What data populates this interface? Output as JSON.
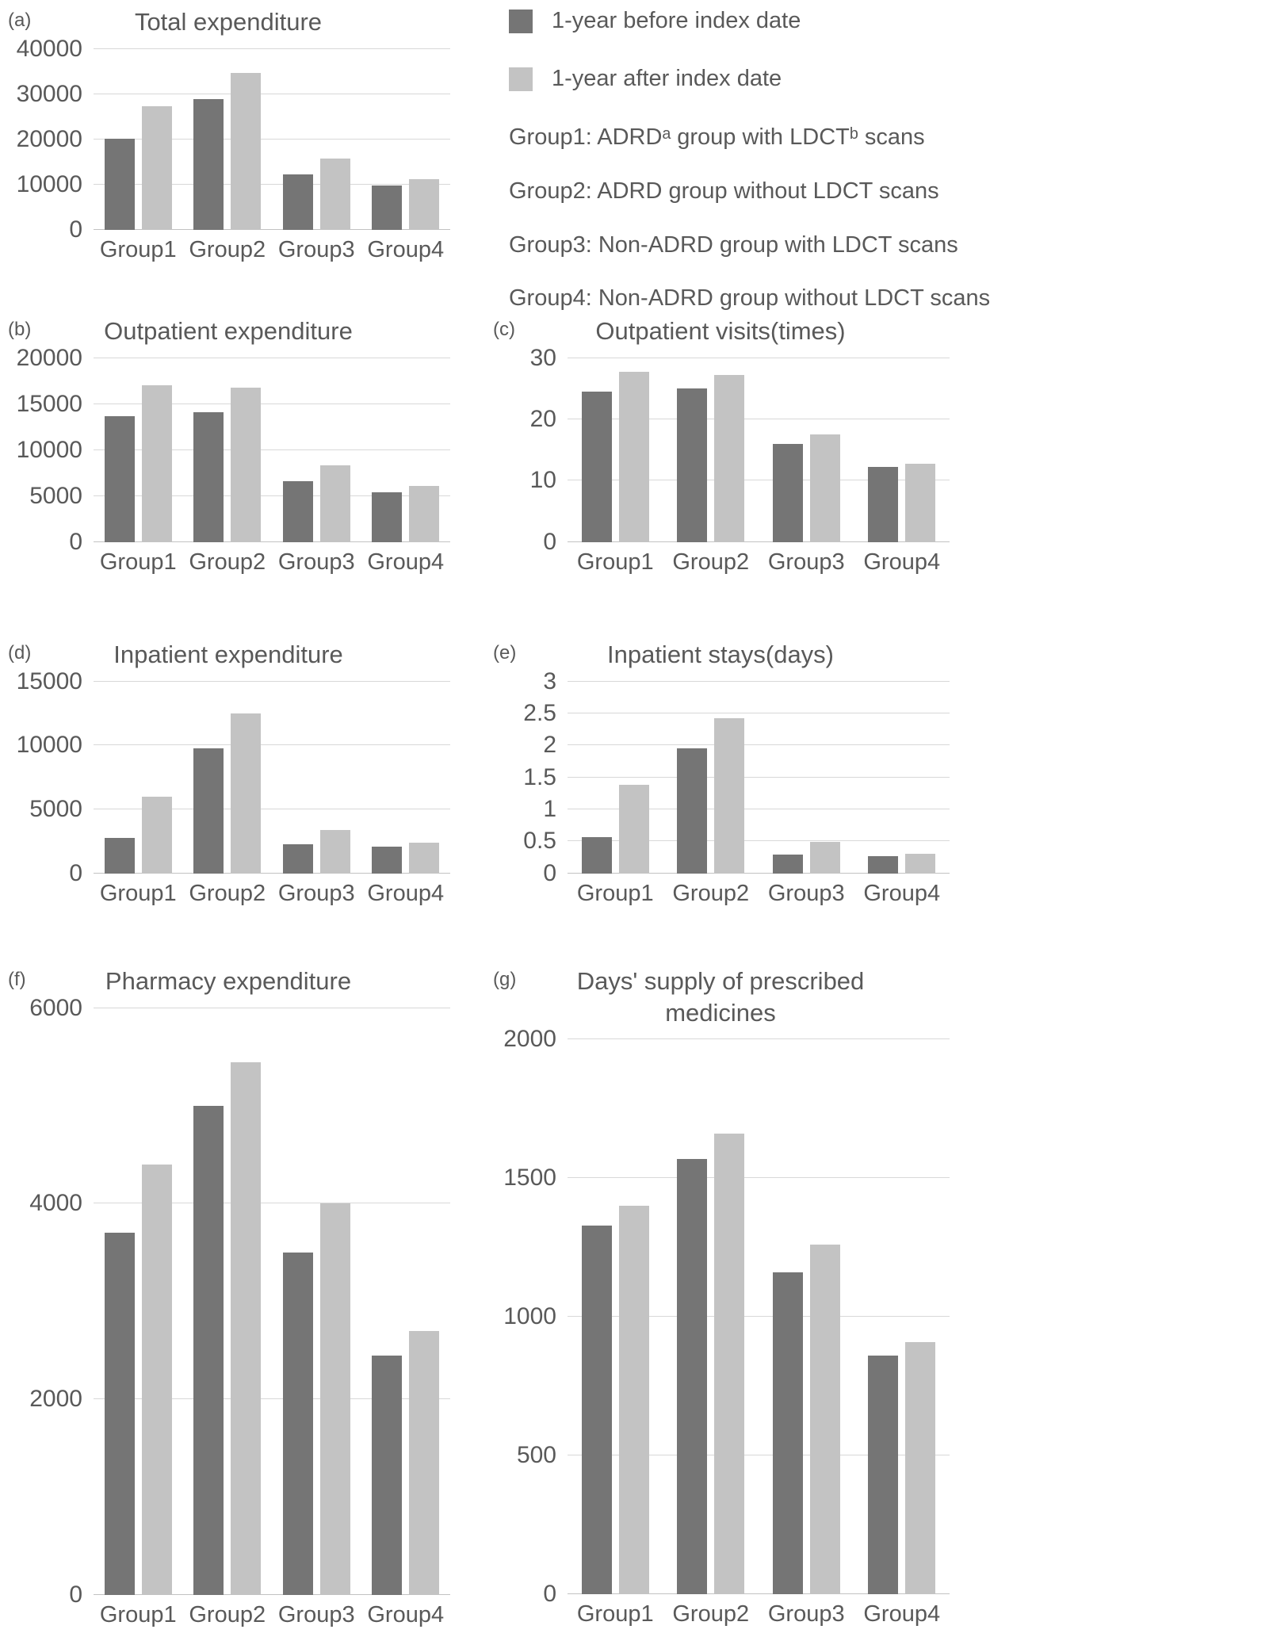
{
  "figure": {
    "text_color": "#595959",
    "colors": {
      "before": "#757575",
      "after": "#c3c3c3",
      "gridline": "#d8d8d8"
    }
  },
  "legend": {
    "items": [
      {
        "key": "before",
        "label": "1-year before index date"
      },
      {
        "key": "after",
        "label": "1-year after index date"
      }
    ],
    "notes": [
      "Group1: ADRDᵃ group with LDCTᵇ scans",
      "Group2: ADRD group without LDCT scans",
      "Group3: Non-ADRD group with LDCT scans",
      "Group4: Non-ADRD group without LDCT scans"
    ]
  },
  "chart_data": [
    {
      "tag": "(a)",
      "type": "bar",
      "title": "Total expenditure",
      "categories": [
        "Group1",
        "Group2",
        "Group3",
        "Group4"
      ],
      "series": [
        {
          "name": "1-year before index date",
          "values": [
            20100,
            28900,
            12200,
            9800
          ]
        },
        {
          "name": "1-year after index date",
          "values": [
            27300,
            34700,
            15700,
            11100
          ]
        }
      ],
      "ylim": [
        0,
        40000
      ],
      "yticks": [
        0,
        10000,
        20000,
        30000,
        40000
      ],
      "grid": true,
      "legend_position": "top-right-of-figure"
    },
    {
      "tag": "(b)",
      "type": "bar",
      "title": "Outpatient expenditure",
      "categories": [
        "Group1",
        "Group2",
        "Group3",
        "Group4"
      ],
      "series": [
        {
          "name": "1-year before index date",
          "values": [
            13700,
            14100,
            6600,
            5400
          ]
        },
        {
          "name": "1-year after index date",
          "values": [
            17000,
            16800,
            8300,
            6100
          ]
        }
      ],
      "ylim": [
        0,
        20000
      ],
      "yticks": [
        0,
        5000,
        10000,
        15000,
        20000
      ],
      "grid": true
    },
    {
      "tag": "(c)",
      "type": "bar",
      "title": "Outpatient visits(times)",
      "categories": [
        "Group1",
        "Group2",
        "Group3",
        "Group4"
      ],
      "series": [
        {
          "name": "1-year before index date",
          "values": [
            24.5,
            25,
            16,
            12.2
          ]
        },
        {
          "name": "1-year after index date",
          "values": [
            27.8,
            27.3,
            17.5,
            12.7
          ]
        }
      ],
      "ylim": [
        0,
        30
      ],
      "yticks": [
        0,
        10,
        20,
        30
      ],
      "grid": true
    },
    {
      "tag": "(d)",
      "type": "bar",
      "title": "Inpatient expenditure",
      "categories": [
        "Group1",
        "Group2",
        "Group3",
        "Group4"
      ],
      "series": [
        {
          "name": "1-year before index date",
          "values": [
            2800,
            9800,
            2300,
            2100
          ]
        },
        {
          "name": "1-year after index date",
          "values": [
            6000,
            12500,
            3400,
            2400
          ]
        }
      ],
      "ylim": [
        0,
        15000
      ],
      "yticks": [
        0,
        5000,
        10000,
        15000
      ],
      "grid": true
    },
    {
      "tag": "(e)",
      "type": "bar",
      "title": "Inpatient stays(days)",
      "categories": [
        "Group1",
        "Group2",
        "Group3",
        "Group4"
      ],
      "series": [
        {
          "name": "1-year before index date",
          "values": [
            0.57,
            1.95,
            0.29,
            0.27
          ]
        },
        {
          "name": "1-year after index date",
          "values": [
            1.38,
            2.42,
            0.49,
            0.31
          ]
        }
      ],
      "ylim": [
        0,
        3
      ],
      "yticks": [
        0,
        0.5,
        1,
        1.5,
        2,
        2.5,
        3
      ],
      "grid": true
    },
    {
      "tag": "(f)",
      "type": "bar",
      "title": "Pharmacy expenditure",
      "categories": [
        "Group1",
        "Group2",
        "Group3",
        "Group4"
      ],
      "series": [
        {
          "name": "1-year before index date",
          "values": [
            3700,
            5000,
            3500,
            2450
          ]
        },
        {
          "name": "1-year after index date",
          "values": [
            4400,
            5450,
            4000,
            2700
          ]
        }
      ],
      "ylim": [
        0,
        6000
      ],
      "yticks": [
        0,
        2000,
        4000,
        6000
      ],
      "grid": true
    },
    {
      "tag": "(g)",
      "type": "bar",
      "title": "Days' supply of prescribed medicines",
      "categories": [
        "Group1",
        "Group2",
        "Group3",
        "Group4"
      ],
      "series": [
        {
          "name": "1-year before index date",
          "values": [
            1330,
            1570,
            1160,
            860
          ]
        },
        {
          "name": "1-year after index date",
          "values": [
            1400,
            1660,
            1260,
            910
          ]
        }
      ],
      "ylim": [
        0,
        2000
      ],
      "yticks": [
        0,
        500,
        1000,
        1500,
        2000
      ],
      "grid": true
    }
  ]
}
